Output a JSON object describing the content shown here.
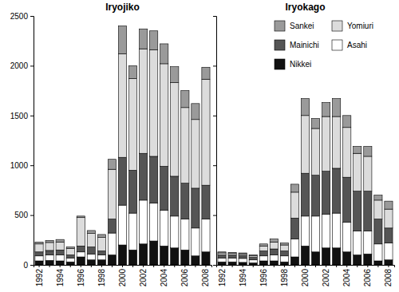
{
  "chart_data": [
    {
      "type": "bar",
      "title": "Iryojiko",
      "stacked": true,
      "categories": [
        "1992",
        null,
        "1994",
        null,
        "1996",
        null,
        "1998",
        null,
        "2000",
        null,
        "2002",
        null,
        "2004",
        null,
        "2006",
        null,
        "2008"
      ],
      "ylim": [
        0,
        2500
      ],
      "yticks": [
        0,
        500,
        1000,
        1500,
        2000,
        2500
      ],
      "series": [
        {
          "name": "Nikkei",
          "color": "#111111",
          "values": [
            40,
            45,
            40,
            30,
            80,
            50,
            50,
            100,
            200,
            150,
            210,
            240,
            190,
            170,
            150,
            90,
            130
          ]
        },
        {
          "name": "Asahi",
          "color": "#ffffff",
          "values": [
            50,
            55,
            60,
            40,
            50,
            60,
            50,
            220,
            400,
            370,
            440,
            380,
            360,
            320,
            310,
            280,
            330
          ]
        },
        {
          "name": "Mainichi",
          "color": "#555555",
          "values": [
            40,
            45,
            50,
            30,
            60,
            70,
            40,
            140,
            480,
            430,
            470,
            470,
            440,
            400,
            360,
            400,
            340
          ]
        },
        {
          "name": "Yomiuri",
          "color": "#dcdcdc",
          "values": [
            80,
            80,
            80,
            65,
            285,
            135,
            135,
            500,
            1040,
            920,
            1050,
            1070,
            1030,
            940,
            760,
            690,
            1065
          ]
        },
        {
          "name": "Sankei",
          "color": "#9a9a9a",
          "values": [
            20,
            20,
            25,
            15,
            15,
            30,
            30,
            100,
            280,
            130,
            200,
            190,
            200,
            160,
            170,
            160,
            120
          ]
        }
      ]
    },
    {
      "type": "bar",
      "title": "Iryokago",
      "stacked": true,
      "legend": "top-right",
      "tick_labels": "x",
      "categories": [
        "1992",
        null,
        "1994",
        null,
        "1996",
        null,
        "1998",
        null,
        "2000",
        null,
        "2002",
        null,
        "2004",
        null,
        "2006",
        null,
        "2008"
      ],
      "ylim": [
        0,
        2500
      ],
      "yticks": [
        0,
        500,
        1000,
        1500,
        2000,
        2500
      ],
      "series": [
        {
          "name": "Nikkei",
          "color": "#111111",
          "values": [
            30,
            30,
            25,
            20,
            40,
            40,
            30,
            80,
            190,
            130,
            170,
            170,
            130,
            100,
            110,
            40,
            50
          ]
        },
        {
          "name": "Asahi",
          "color": "#ffffff",
          "values": [
            40,
            40,
            40,
            30,
            50,
            60,
            60,
            180,
            300,
            360,
            340,
            350,
            300,
            240,
            230,
            170,
            170
          ]
        },
        {
          "name": "Mainichi",
          "color": "#555555",
          "values": [
            30,
            30,
            30,
            25,
            50,
            60,
            50,
            210,
            430,
            410,
            430,
            450,
            450,
            400,
            400,
            250,
            150
          ]
        },
        {
          "name": "Yomiuri",
          "color": "#dcdcdc",
          "values": [
            20,
            15,
            15,
            15,
            50,
            70,
            60,
            260,
            580,
            470,
            550,
            520,
            500,
            380,
            350,
            190,
            190
          ]
        },
        {
          "name": "Sankei",
          "color": "#9a9a9a",
          "values": [
            10,
            10,
            10,
            10,
            20,
            30,
            20,
            80,
            170,
            100,
            140,
            180,
            120,
            70,
            100,
            50,
            80
          ]
        }
      ]
    }
  ]
}
